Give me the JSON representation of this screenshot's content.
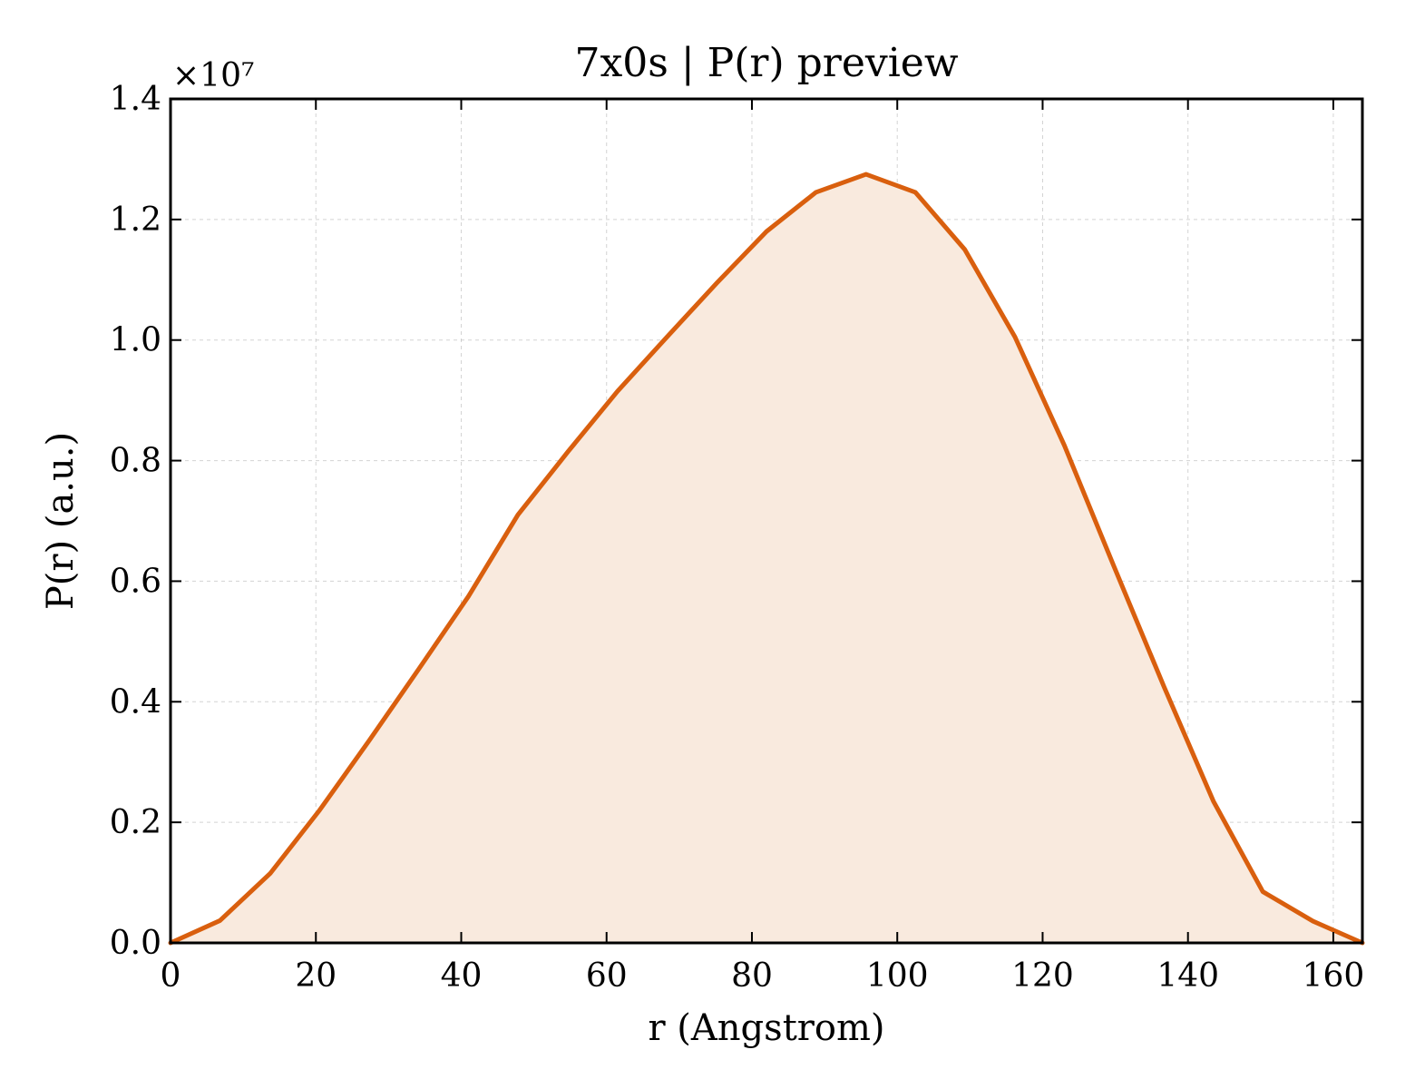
{
  "chart_data": {
    "type": "area",
    "title": "7x0s | P(r) preview",
    "xlabel": "r (Angstrom)",
    "ylabel": "P(r) (a.u.)",
    "y_offset_label": "×10⁷",
    "y_scale": 10000000,
    "xlim": [
      0,
      164
    ],
    "ylim": [
      0,
      1.4
    ],
    "x_ticks": [
      0,
      20,
      40,
      60,
      80,
      100,
      120,
      140,
      160
    ],
    "y_ticks": [
      0.0,
      0.2,
      0.4,
      0.6,
      0.8,
      1.0,
      1.2,
      1.4
    ],
    "x_tick_labels": [
      "0",
      "20",
      "40",
      "60",
      "80",
      "100",
      "120",
      "140",
      "160"
    ],
    "y_tick_labels": [
      "0.0",
      "0.2",
      "0.4",
      "0.6",
      "0.8",
      "1.0",
      "1.2",
      "1.4"
    ],
    "grid": true,
    "series": [
      {
        "line_color": "#d95f0e",
        "fill_color": "#f9eade",
        "x": [
          0,
          6.8,
          13.7,
          20.5,
          27.3,
          34.2,
          41.0,
          47.8,
          54.7,
          61.5,
          68.3,
          75.2,
          82.0,
          88.8,
          95.7,
          102.5,
          109.3,
          116.2,
          123.0,
          129.8,
          136.7,
          143.5,
          150.3,
          157.2,
          164.0
        ],
        "values": [
          0.0,
          0.037,
          0.115,
          0.22,
          0.335,
          0.455,
          0.575,
          0.71,
          0.815,
          0.915,
          1.005,
          1.095,
          1.18,
          1.245,
          1.275,
          1.245,
          1.15,
          1.005,
          0.825,
          0.625,
          0.425,
          0.235,
          0.085,
          0.036,
          0.0
        ]
      }
    ]
  }
}
